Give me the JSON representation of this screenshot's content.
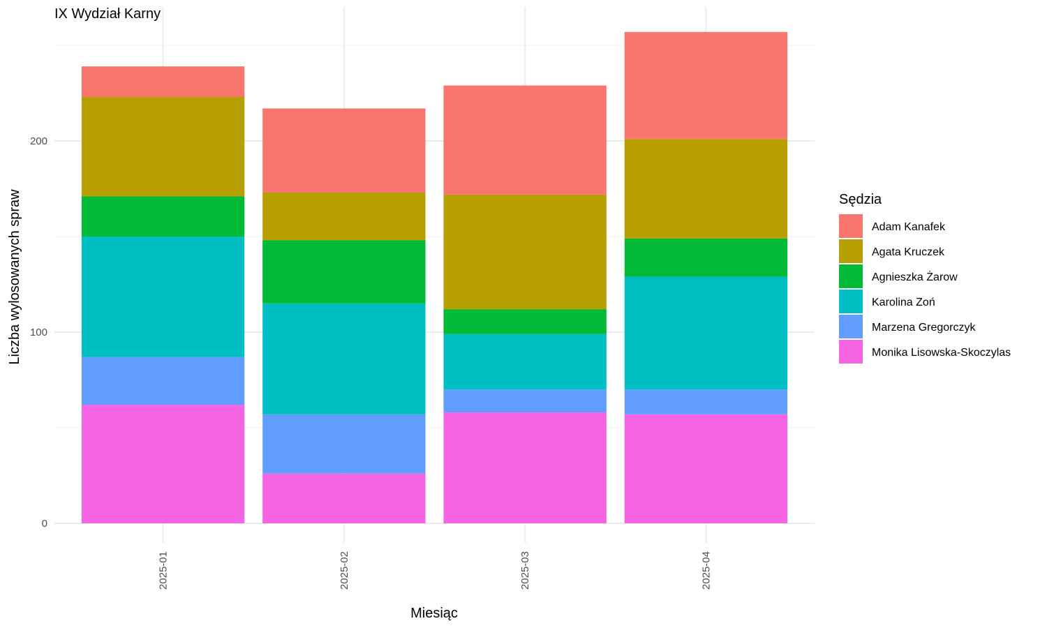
{
  "chart_data": {
    "type": "bar",
    "stacked": true,
    "title": "IX Wydział Karny",
    "xlabel": "Miesiąc",
    "ylabel": "Liczba wylosowanych spraw",
    "categories": [
      "2025-01",
      "2025-02",
      "2025-03",
      "2025-04"
    ],
    "ylim": [
      0,
      260
    ],
    "yticks": [
      0,
      100,
      200
    ],
    "legend_title": "Sędzia",
    "legend_position": "right",
    "grid": true,
    "series": [
      {
        "name": "Adam Kanafek",
        "color": "#F8766D",
        "values": [
          16,
          44,
          57,
          56
        ]
      },
      {
        "name": "Agata Kruczek",
        "color": "#B79F00",
        "values": [
          52,
          25,
          60,
          52
        ]
      },
      {
        "name": "Agnieszka Żarow",
        "color": "#00BA38",
        "values": [
          21,
          33,
          13,
          20
        ]
      },
      {
        "name": "Karolina Zoń",
        "color": "#00BFC4",
        "values": [
          63,
          58,
          29,
          59
        ]
      },
      {
        "name": "Marzena Gregorczyk",
        "color": "#619CFF",
        "values": [
          25,
          31,
          12,
          13
        ]
      },
      {
        "name": "Monika Lisowska-Skoczylas",
        "color": "#F564E3",
        "values": [
          62,
          26,
          58,
          57
        ]
      }
    ]
  }
}
